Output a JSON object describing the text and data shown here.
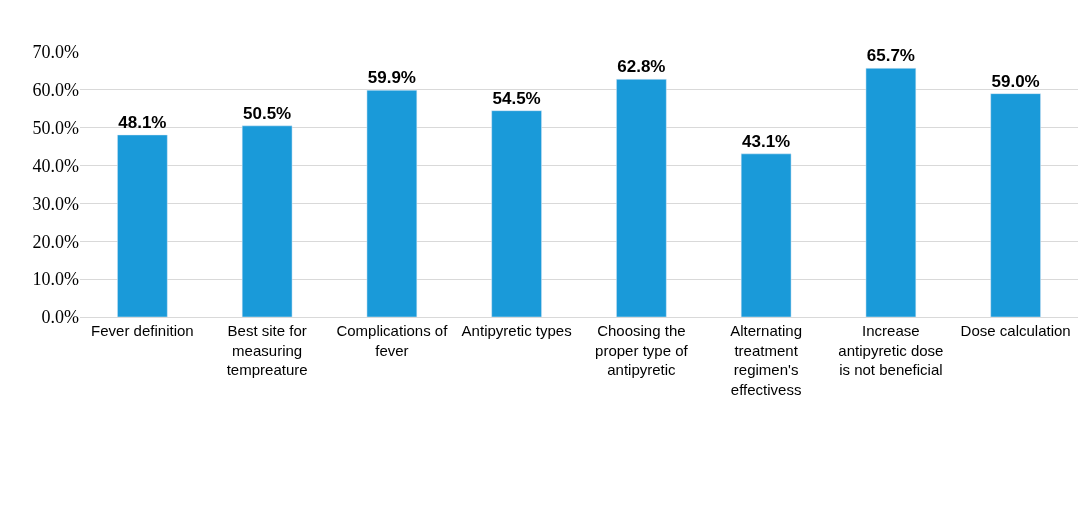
{
  "chart_data": {
    "type": "bar",
    "categories": [
      "Fever definition",
      "Best site for measuring tempreature",
      "Complications of fever",
      "Antipyretic types",
      "Choosing the proper type of antipyretic",
      "Alternating treatment regimen's effectivess",
      "Increase antipyretic dose is not beneficial",
      "Dose calculation"
    ],
    "values": [
      48.1,
      50.5,
      59.9,
      54.5,
      62.8,
      43.1,
      65.7,
      59.0
    ],
    "value_labels": [
      "48.1%",
      "50.5%",
      "59.9%",
      "54.5%",
      "62.8%",
      "43.1%",
      "65.7%",
      "59.0%"
    ],
    "color": "#1a9ad9",
    "ylim": [
      0,
      70
    ],
    "yticks": [
      {
        "value": 0,
        "label": "0.0%"
      },
      {
        "value": 10,
        "label": "10.0%"
      },
      {
        "value": 20,
        "label": "20.0%"
      },
      {
        "value": 30,
        "label": "30.0%"
      },
      {
        "value": 40,
        "label": "40.0%"
      },
      {
        "value": 50,
        "label": "50.0%"
      },
      {
        "value": 60,
        "label": "60.0%"
      },
      {
        "value": 70,
        "label": "70.0%"
      }
    ],
    "grid": "y",
    "legend": false
  }
}
